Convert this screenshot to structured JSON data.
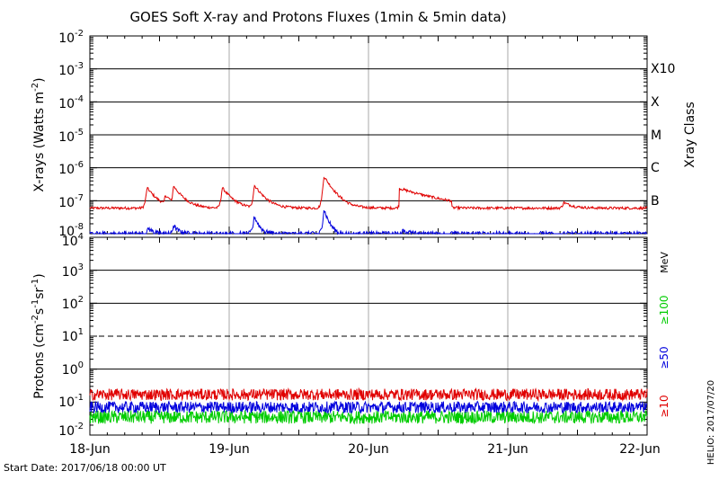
{
  "chart_data": [
    {
      "type": "line",
      "title": "GOES Soft X-ray and Protons Fluxes   (1min & 5min data)",
      "ylabel_main": "X-rays (Watts m",
      "ylabel_sup": "-2",
      "ylabel_end": ")",
      "yscale": "log",
      "ylim": [
        1e-08,
        0.01
      ],
      "yticks": [
        {
          "base": "10",
          "exp": "-2"
        },
        {
          "base": "10",
          "exp": "-3"
        },
        {
          "base": "10",
          "exp": "-4"
        },
        {
          "base": "10",
          "exp": "-5"
        },
        {
          "base": "10",
          "exp": "-6"
        },
        {
          "base": "10",
          "exp": "-7"
        },
        {
          "base": "10",
          "exp": "-8"
        }
      ],
      "right_axis_title": "Xray Class",
      "flare_classes": [
        {
          "label": "X10",
          "level": 0.001
        },
        {
          "label": "X",
          "level": 0.0001
        },
        {
          "label": "M",
          "level": 1e-05
        },
        {
          "label": "C",
          "level": 1e-06
        },
        {
          "label": "B",
          "level": 1e-07
        }
      ],
      "x_range_days": [
        0,
        4
      ],
      "series": [
        {
          "color": "#e00000",
          "baseline": 6e-08,
          "peaks": [
            {
              "x": 0.41,
              "y": 2.5e-07
            },
            {
              "x": 0.54,
              "y": 1.5e-07
            },
            {
              "x": 0.6,
              "y": 2.8e-07
            },
            {
              "x": 0.95,
              "y": 2.5e-07
            },
            {
              "x": 1.18,
              "y": 3e-07
            },
            {
              "x": 1.68,
              "y": 5.5e-07
            },
            {
              "x": 2.24,
              "y": 2.2e-07
            },
            {
              "x": 2.35,
              "y": 1.8e-07
            },
            {
              "x": 3.4,
              "y": 9e-08
            }
          ]
        },
        {
          "color": "#0000dd",
          "baseline": 1e-08,
          "peaks": [
            {
              "x": 0.42,
              "y": 1.5e-08
            },
            {
              "x": 0.6,
              "y": 1.8e-08
            },
            {
              "x": 1.18,
              "y": 3.5e-08
            },
            {
              "x": 1.68,
              "y": 5.5e-08
            },
            {
              "x": 2.25,
              "y": 1.4e-08
            }
          ]
        }
      ]
    },
    {
      "type": "line",
      "ylabel_main": "Protons (cm",
      "ylabel_sup1": "-2",
      "ylabel_mid": "s",
      "ylabel_sup2": "-1",
      "ylabel_mid2": "sr",
      "ylabel_sup3": "-1",
      "ylabel_end": ")",
      "yscale": "log",
      "ylim": [
        0.01,
        10000.0
      ],
      "yticks": [
        {
          "base": "10",
          "exp": "4"
        },
        {
          "base": "10",
          "exp": "3"
        },
        {
          "base": "10",
          "exp": "2"
        },
        {
          "base": "10",
          "exp": "1"
        },
        {
          "base": "10",
          "exp": "0"
        },
        {
          "base": "10",
          "exp": "-1"
        },
        {
          "base": "10",
          "exp": "-2"
        }
      ],
      "threshold": 10,
      "energy_unit": "MeV",
      "energy_labels": [
        {
          "label": "≥100",
          "color": "#00cc00"
        },
        {
          "label": "≥50",
          "color": "#0000dd"
        },
        {
          "label": "≥10",
          "color": "#e00000"
        }
      ],
      "x_categories": [
        "18-Jun",
        "19-Jun",
        "20-Jun",
        "21-Jun",
        "22-Jun"
      ],
      "series": [
        {
          "color": "#e00000",
          "baseline": 0.17
        },
        {
          "color": "#0000dd",
          "baseline": 0.07
        },
        {
          "color": "#00cc00",
          "baseline": 0.035
        }
      ]
    }
  ],
  "footer": {
    "start_date": "Start Date: 2017/06/18 00:00 UT",
    "credit": "HELIO: 2017/07/20"
  }
}
